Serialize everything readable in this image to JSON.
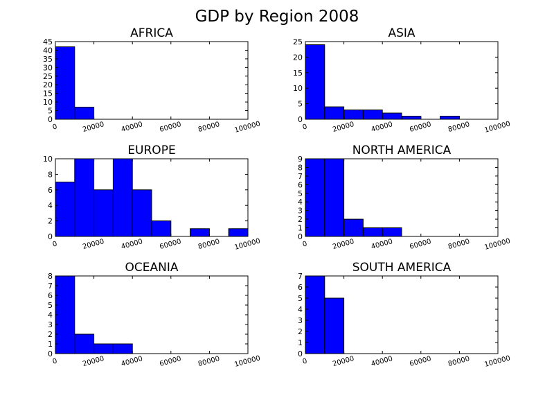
{
  "figure": {
    "title": "GDP by Region 2008"
  },
  "colors": {
    "bar_fill": "#0000ff",
    "bar_edge": "#000000",
    "axes": "#000000",
    "background": "#ffffff"
  },
  "chart_data": [
    {
      "type": "bar",
      "subtype": "histogram",
      "title": "AFRICA",
      "bin_edges": [
        0,
        10000,
        20000,
        30000,
        40000,
        50000,
        60000,
        70000,
        80000,
        90000,
        100000
      ],
      "values": [
        42,
        7,
        0,
        0,
        0,
        0,
        0,
        0,
        0,
        0
      ],
      "xlim": [
        0,
        100000
      ],
      "ylim": [
        0,
        45
      ],
      "xticks": [
        0,
        20000,
        40000,
        60000,
        80000,
        100000
      ],
      "yticks": [
        0,
        5,
        10,
        15,
        20,
        25,
        30,
        35,
        40,
        45
      ],
      "xlabel": "",
      "ylabel": ""
    },
    {
      "type": "bar",
      "subtype": "histogram",
      "title": "ASIA",
      "bin_edges": [
        0,
        10000,
        20000,
        30000,
        40000,
        50000,
        60000,
        70000,
        80000,
        90000,
        100000
      ],
      "values": [
        24,
        4,
        3,
        3,
        2,
        1,
        0,
        1,
        0,
        0
      ],
      "xlim": [
        0,
        100000
      ],
      "ylim": [
        0,
        25
      ],
      "xticks": [
        0,
        20000,
        40000,
        60000,
        80000,
        100000
      ],
      "yticks": [
        0,
        5,
        10,
        15,
        20,
        25
      ],
      "xlabel": "",
      "ylabel": ""
    },
    {
      "type": "bar",
      "subtype": "histogram",
      "title": "EUROPE",
      "bin_edges": [
        0,
        10000,
        20000,
        30000,
        40000,
        50000,
        60000,
        70000,
        80000,
        90000,
        100000
      ],
      "values": [
        7,
        10,
        6,
        10,
        6,
        2,
        0,
        1,
        0,
        1
      ],
      "xlim": [
        0,
        100000
      ],
      "ylim": [
        0,
        10
      ],
      "xticks": [
        0,
        20000,
        40000,
        60000,
        80000,
        100000
      ],
      "yticks": [
        0,
        2,
        4,
        6,
        8,
        10
      ],
      "xlabel": "",
      "ylabel": ""
    },
    {
      "type": "bar",
      "subtype": "histogram",
      "title": "NORTH AMERICA",
      "bin_edges": [
        0,
        10000,
        20000,
        30000,
        40000,
        50000,
        60000,
        70000,
        80000,
        90000,
        100000
      ],
      "values": [
        9,
        9,
        2,
        1,
        1,
        0,
        0,
        0,
        0,
        0
      ],
      "xlim": [
        0,
        100000
      ],
      "ylim": [
        0,
        9
      ],
      "xticks": [
        0,
        20000,
        40000,
        60000,
        80000,
        100000
      ],
      "yticks": [
        0,
        1,
        2,
        3,
        4,
        5,
        6,
        7,
        8,
        9
      ],
      "xlabel": "",
      "ylabel": ""
    },
    {
      "type": "bar",
      "subtype": "histogram",
      "title": "OCEANIA",
      "bin_edges": [
        0,
        10000,
        20000,
        30000,
        40000,
        50000,
        60000,
        70000,
        80000,
        90000,
        100000
      ],
      "values": [
        8,
        2,
        1,
        1,
        0,
        0,
        0,
        0,
        0,
        0
      ],
      "xlim": [
        0,
        100000
      ],
      "ylim": [
        0,
        8
      ],
      "xticks": [
        0,
        20000,
        40000,
        60000,
        80000,
        100000
      ],
      "yticks": [
        0,
        1,
        2,
        3,
        4,
        5,
        6,
        7,
        8
      ],
      "xlabel": "",
      "ylabel": ""
    },
    {
      "type": "bar",
      "subtype": "histogram",
      "title": "SOUTH AMERICA",
      "bin_edges": [
        0,
        10000,
        20000,
        30000,
        40000,
        50000,
        60000,
        70000,
        80000,
        90000,
        100000
      ],
      "values": [
        7,
        5,
        0,
        0,
        0,
        0,
        0,
        0,
        0,
        0
      ],
      "xlim": [
        0,
        100000
      ],
      "ylim": [
        0,
        7
      ],
      "xticks": [
        0,
        20000,
        40000,
        60000,
        80000,
        100000
      ],
      "yticks": [
        0,
        1,
        2,
        3,
        4,
        5,
        6,
        7
      ],
      "xlabel": "",
      "ylabel": ""
    }
  ]
}
